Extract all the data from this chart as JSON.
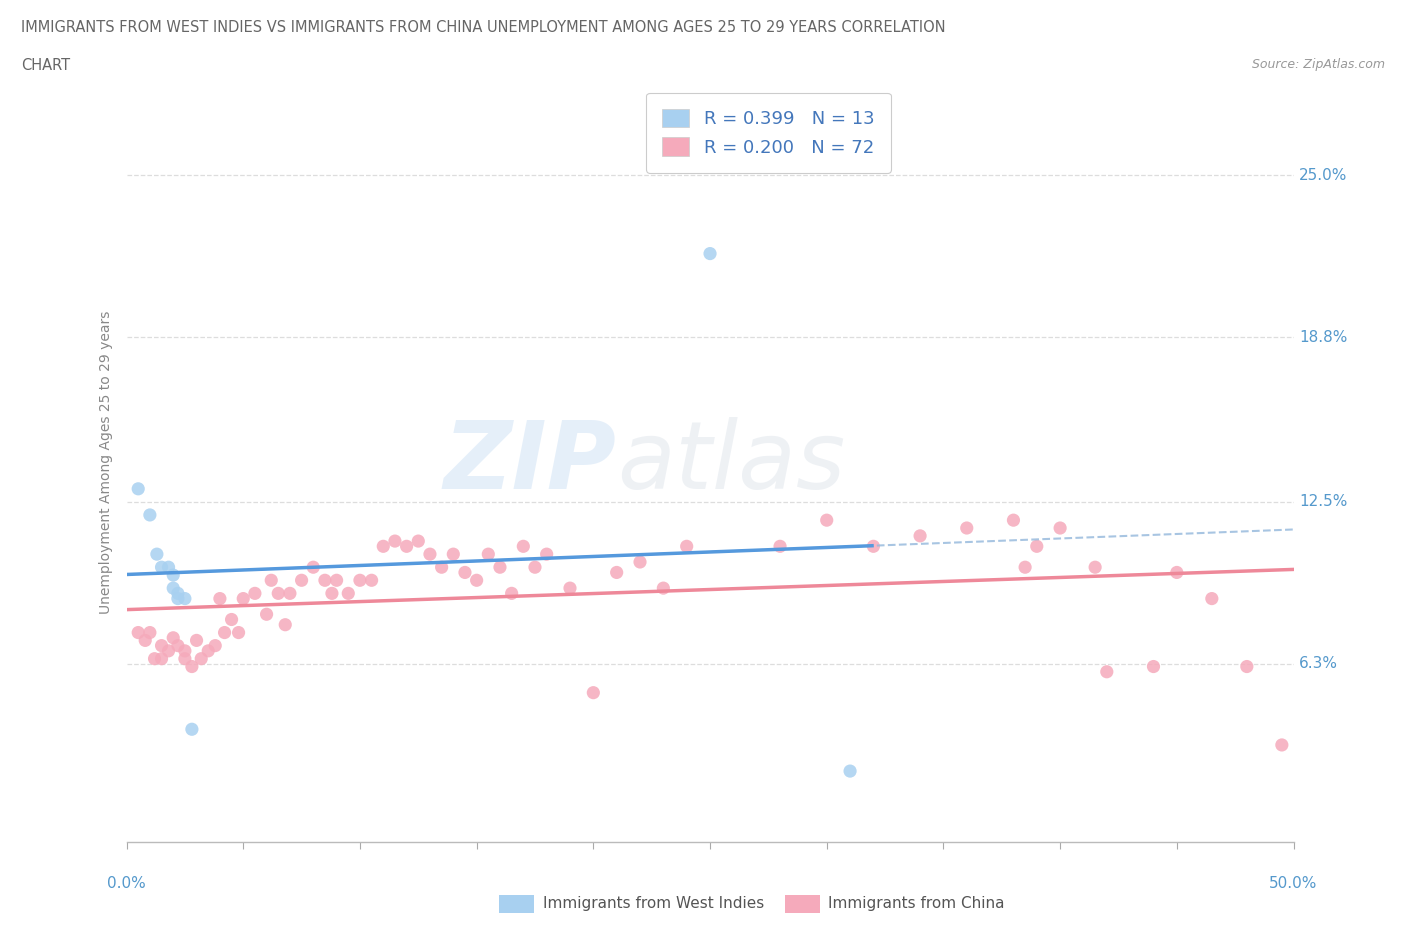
{
  "title_line1": "IMMIGRANTS FROM WEST INDIES VS IMMIGRANTS FROM CHINA UNEMPLOYMENT AMONG AGES 25 TO 29 YEARS CORRELATION",
  "title_line2": "CHART",
  "source": "Source: ZipAtlas.com",
  "ylabel": "Unemployment Among Ages 25 to 29 years",
  "ytick_vals": [
    0.063,
    0.125,
    0.188,
    0.25
  ],
  "ytick_labels": [
    "6.3%",
    "12.5%",
    "18.8%",
    "25.0%"
  ],
  "xlim": [
    0.0,
    0.5
  ],
  "ylim": [
    -0.005,
    0.285
  ],
  "legend_r1": "R = 0.399",
  "legend_n1": "N = 13",
  "legend_r2": "R = 0.200",
  "legend_n2": "N = 72",
  "color_blue": "#A8D0F0",
  "color_pink": "#F5AABB",
  "color_blue_line": "#5599DD",
  "color_pink_line": "#EE8899",
  "color_dashed": "#99BBDD",
  "west_indies_x": [
    0.005,
    0.01,
    0.013,
    0.015,
    0.018,
    0.02,
    0.02,
    0.022,
    0.022,
    0.025,
    0.028,
    0.25,
    0.31
  ],
  "west_indies_y": [
    0.13,
    0.12,
    0.105,
    0.1,
    0.1,
    0.097,
    0.092,
    0.09,
    0.088,
    0.088,
    0.038,
    0.22,
    0.022
  ],
  "china_x": [
    0.005,
    0.008,
    0.01,
    0.012,
    0.015,
    0.015,
    0.018,
    0.02,
    0.022,
    0.025,
    0.025,
    0.028,
    0.03,
    0.032,
    0.035,
    0.038,
    0.04,
    0.042,
    0.045,
    0.048,
    0.05,
    0.055,
    0.06,
    0.062,
    0.065,
    0.068,
    0.07,
    0.075,
    0.08,
    0.085,
    0.088,
    0.09,
    0.095,
    0.1,
    0.105,
    0.11,
    0.115,
    0.12,
    0.125,
    0.13,
    0.135,
    0.14,
    0.145,
    0.15,
    0.155,
    0.16,
    0.165,
    0.17,
    0.175,
    0.18,
    0.19,
    0.2,
    0.21,
    0.22,
    0.23,
    0.24,
    0.28,
    0.3,
    0.32,
    0.34,
    0.36,
    0.38,
    0.39,
    0.4,
    0.42,
    0.44,
    0.45,
    0.465,
    0.48,
    0.495,
    0.385,
    0.415
  ],
  "china_y": [
    0.075,
    0.072,
    0.075,
    0.065,
    0.07,
    0.065,
    0.068,
    0.073,
    0.07,
    0.065,
    0.068,
    0.062,
    0.072,
    0.065,
    0.068,
    0.07,
    0.088,
    0.075,
    0.08,
    0.075,
    0.088,
    0.09,
    0.082,
    0.095,
    0.09,
    0.078,
    0.09,
    0.095,
    0.1,
    0.095,
    0.09,
    0.095,
    0.09,
    0.095,
    0.095,
    0.108,
    0.11,
    0.108,
    0.11,
    0.105,
    0.1,
    0.105,
    0.098,
    0.095,
    0.105,
    0.1,
    0.09,
    0.108,
    0.1,
    0.105,
    0.092,
    0.052,
    0.098,
    0.102,
    0.092,
    0.108,
    0.108,
    0.118,
    0.108,
    0.112,
    0.115,
    0.118,
    0.108,
    0.115,
    0.06,
    0.062,
    0.098,
    0.088,
    0.062,
    0.032,
    0.1,
    0.1
  ]
}
